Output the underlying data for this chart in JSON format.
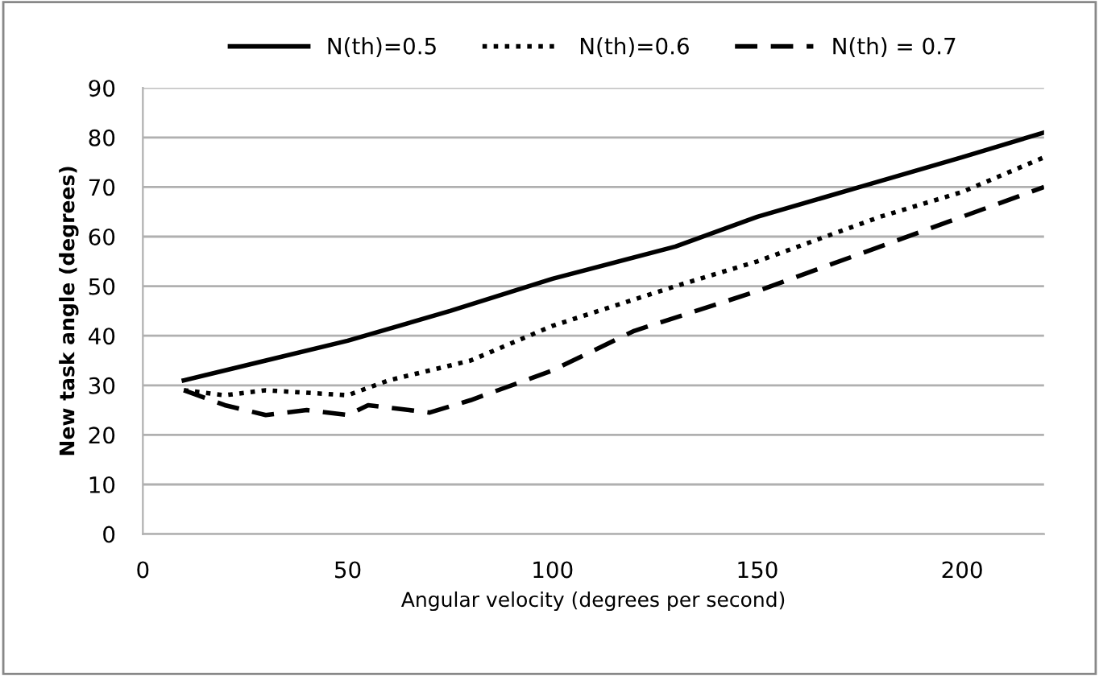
{
  "chart_data": {
    "type": "line",
    "xlabel": "Angular velocity (degrees per second)",
    "ylabel": "New task angle (degrees)",
    "xlim": [
      0,
      220
    ],
    "xticks": [
      0,
      50,
      100,
      150,
      200
    ],
    "ylim": [
      0,
      90
    ],
    "yticks": [
      0,
      10,
      20,
      30,
      40,
      50,
      60,
      70,
      80,
      90
    ],
    "grid": "y",
    "legend": "top",
    "marker": "none",
    "series": [
      {
        "name": "N(th)=0.5",
        "color": "#000000",
        "line_style": "solid",
        "x": [
          10,
          30,
          50,
          75,
          100,
          130,
          150,
          175,
          200,
          220
        ],
        "values": [
          31,
          35,
          39,
          45,
          51.5,
          58,
          64,
          70,
          76,
          81
        ]
      },
      {
        "name": "N(th)=0.6",
        "color": "#000000",
        "line_style": "dotted",
        "x": [
          10,
          20,
          30,
          40,
          50,
          60,
          80,
          100,
          130,
          150,
          180,
          200,
          220
        ],
        "values": [
          29,
          28,
          29,
          28.5,
          28,
          31,
          35,
          42,
          50,
          55,
          64,
          69,
          76
        ]
      },
      {
        "name": "N(th) = 0.7",
        "color": "#000000",
        "line_style": "dashed",
        "x": [
          10,
          20,
          30,
          40,
          50,
          55,
          65,
          70,
          80,
          100,
          120,
          150,
          180,
          200,
          220
        ],
        "values": [
          29,
          26,
          24,
          25,
          24,
          26,
          25,
          24.5,
          27,
          33,
          41,
          49,
          58,
          64,
          70
        ]
      }
    ]
  }
}
